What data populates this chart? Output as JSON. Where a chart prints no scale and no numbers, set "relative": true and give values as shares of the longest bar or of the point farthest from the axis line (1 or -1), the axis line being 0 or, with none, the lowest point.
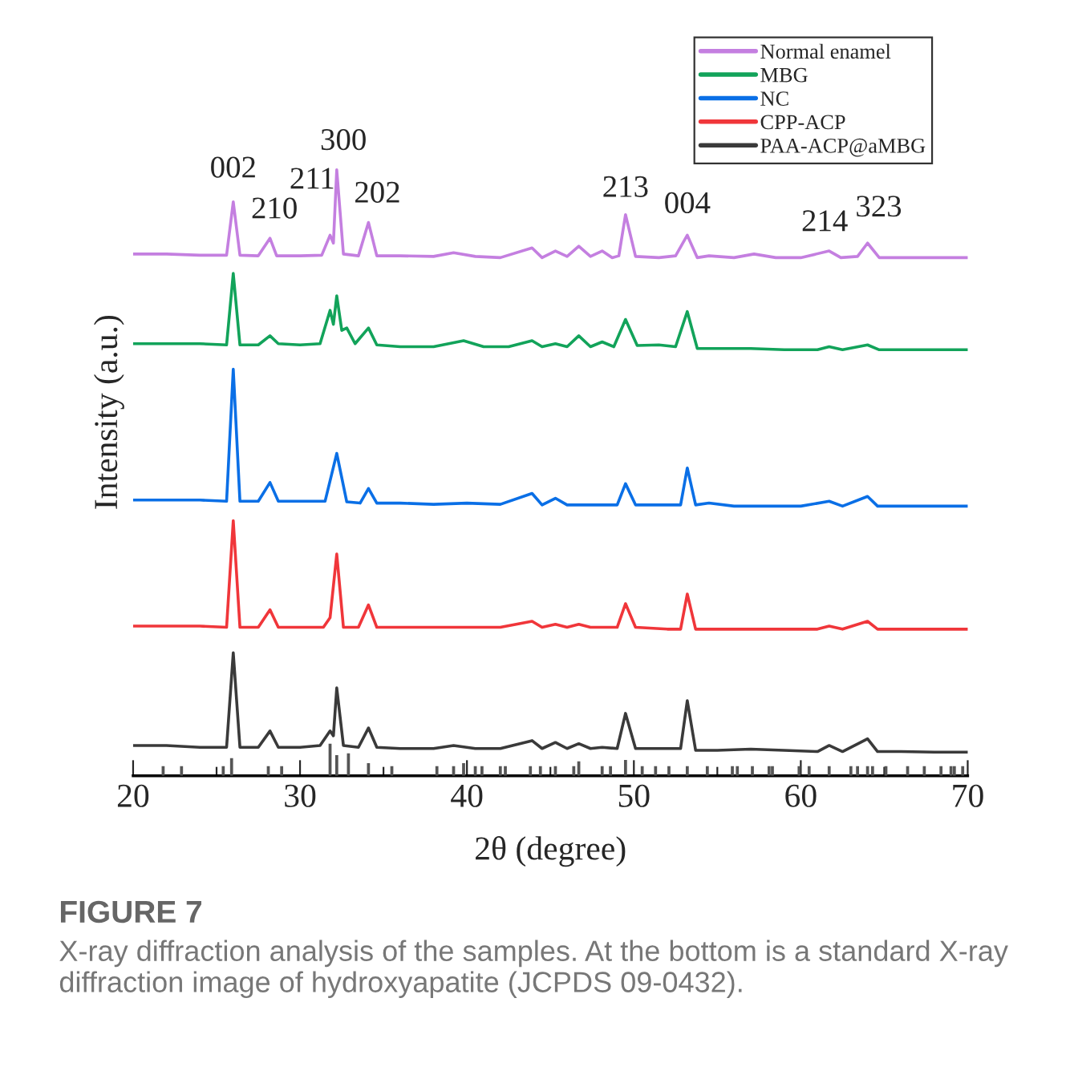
{
  "chart_data": {
    "type": "line",
    "relative": true,
    "xlabel": "2θ (degree)",
    "ylabel": "Intensity (a.u.)",
    "xlim": [
      20,
      70
    ],
    "xticks": [
      20,
      {
        "value": 25,
        "label": null
      },
      30,
      {
        "value": 35,
        "label": null
      },
      40,
      {
        "value": 45,
        "label": null
      },
      50,
      {
        "value": 55,
        "label": null
      },
      60,
      {
        "value": 65,
        "label": null
      },
      70
    ],
    "tick_labels": "x",
    "legend": "top right",
    "line_style": "solid",
    "marker": "none",
    "series": [
      {
        "name": "Normal enamel",
        "color": "#c47fe0",
        "x": [
          20,
          22,
          24,
          25.6,
          26,
          26.4,
          27.5,
          28.2,
          28.6,
          30,
          31.3,
          31.8,
          32.0,
          32.2,
          32.6,
          33.5,
          34.1,
          34.6,
          36,
          38,
          39.2,
          40.5,
          42,
          43.9,
          44.5,
          45.3,
          46,
          46.7,
          47.4,
          48.1,
          48.7,
          49.1,
          49.5,
          50.1,
          51.5,
          52.5,
          53.2,
          53.8,
          54.5,
          56,
          57.2,
          58.5,
          60,
          61.7,
          62.4,
          63.4,
          64.0,
          64.7,
          66,
          68,
          70
        ],
        "values": [
          0.861,
          0.861,
          0.859,
          0.859,
          0.947,
          0.859,
          0.858,
          0.887,
          0.858,
          0.858,
          0.859,
          0.892,
          0.879,
          1.0,
          0.861,
          0.858,
          0.913,
          0.858,
          0.858,
          0.857,
          0.863,
          0.857,
          0.855,
          0.871,
          0.855,
          0.866,
          0.857,
          0.874,
          0.857,
          0.866,
          0.855,
          0.858,
          0.926,
          0.857,
          0.855,
          0.858,
          0.892,
          0.855,
          0.858,
          0.855,
          0.861,
          0.855,
          0.855,
          0.866,
          0.855,
          0.857,
          0.879,
          0.855,
          0.855,
          0.855,
          0.855
        ]
      },
      {
        "name": "MBG",
        "color": "#12a35a",
        "x": [
          20,
          22,
          24,
          25.6,
          26.0,
          26.4,
          27.5,
          28.2,
          28.7,
          30,
          31.2,
          31.8,
          32.0,
          32.2,
          32.5,
          32.8,
          33.3,
          34.1,
          34.6,
          36,
          38,
          39.8,
          41,
          42.5,
          43.9,
          44.5,
          45.3,
          46,
          46.7,
          47.4,
          48.1,
          48.8,
          49.5,
          50.2,
          51.5,
          52.5,
          53.2,
          53.8,
          55,
          57,
          59,
          61,
          61.7,
          62.5,
          64,
          64.7,
          66,
          68,
          70
        ],
        "values": [
          0.713,
          0.713,
          0.713,
          0.711,
          0.829,
          0.711,
          0.711,
          0.726,
          0.713,
          0.711,
          0.713,
          0.768,
          0.745,
          0.792,
          0.735,
          0.739,
          0.713,
          0.739,
          0.711,
          0.708,
          0.708,
          0.718,
          0.708,
          0.708,
          0.718,
          0.708,
          0.713,
          0.708,
          0.726,
          0.708,
          0.716,
          0.708,
          0.753,
          0.71,
          0.711,
          0.708,
          0.766,
          0.705,
          0.705,
          0.705,
          0.703,
          0.703,
          0.708,
          0.703,
          0.711,
          0.703,
          0.703,
          0.703,
          0.703
        ]
      },
      {
        "name": "NC",
        "color": "#0a6fe6",
        "x": [
          20,
          22,
          24,
          25.6,
          26,
          26.4,
          27.5,
          28.2,
          28.7,
          30,
          31.5,
          32.2,
          32.8,
          33.6,
          34.1,
          34.6,
          36,
          38,
          40,
          42,
          43.9,
          44.5,
          45.3,
          46,
          48,
          49.0,
          49.5,
          50.1,
          52,
          52.8,
          53.2,
          53.7,
          54.5,
          56,
          58,
          60,
          61.7,
          62.5,
          64,
          64.6,
          66,
          68,
          70
        ],
        "values": [
          0.455,
          0.455,
          0.455,
          0.453,
          0.671,
          0.453,
          0.453,
          0.484,
          0.453,
          0.453,
          0.453,
          0.532,
          0.452,
          0.45,
          0.474,
          0.45,
          0.45,
          0.448,
          0.45,
          0.448,
          0.466,
          0.447,
          0.458,
          0.447,
          0.447,
          0.447,
          0.482,
          0.447,
          0.447,
          0.447,
          0.508,
          0.447,
          0.45,
          0.445,
          0.445,
          0.445,
          0.453,
          0.445,
          0.461,
          0.445,
          0.445,
          0.445,
          0.445
        ]
      },
      {
        "name": "CPP-ACP",
        "color": "#f0363a",
        "x": [
          20,
          22,
          24,
          25.6,
          26,
          26.4,
          27.5,
          28.2,
          28.7,
          30,
          31.4,
          31.8,
          32.2,
          32.6,
          33.5,
          34.1,
          34.6,
          36,
          38,
          40,
          42,
          43.9,
          44.5,
          45.3,
          46,
          46.7,
          47.4,
          49.0,
          49.5,
          50.1,
          52,
          52.8,
          53.2,
          53.7,
          55,
          57,
          59,
          61,
          61.7,
          62.5,
          64,
          64.6,
          66,
          68,
          70
        ],
        "values": [
          0.247,
          0.247,
          0.247,
          0.245,
          0.421,
          0.245,
          0.245,
          0.274,
          0.245,
          0.245,
          0.245,
          0.261,
          0.366,
          0.245,
          0.245,
          0.282,
          0.245,
          0.245,
          0.245,
          0.245,
          0.245,
          0.255,
          0.245,
          0.25,
          0.245,
          0.25,
          0.245,
          0.245,
          0.284,
          0.245,
          0.242,
          0.242,
          0.3,
          0.242,
          0.242,
          0.242,
          0.242,
          0.242,
          0.247,
          0.242,
          0.255,
          0.242,
          0.242,
          0.242,
          0.242
        ]
      },
      {
        "name": "PAA-ACP@aMBG",
        "color": "#3a3a3a",
        "x": [
          20,
          22,
          24,
          25.6,
          26,
          26.4,
          27.5,
          28.2,
          28.7,
          30,
          31.2,
          31.8,
          32.0,
          32.2,
          32.6,
          33.5,
          34.1,
          34.6,
          36,
          38,
          39.2,
          40.5,
          42,
          43.9,
          44.5,
          45.3,
          46,
          46.7,
          47.4,
          48.1,
          49.0,
          49.5,
          50.1,
          52,
          52.8,
          53.2,
          53.7,
          55,
          57,
          59,
          61,
          61.7,
          62.5,
          64,
          64.6,
          66,
          68,
          70
        ],
        "values": [
          0.05,
          0.05,
          0.047,
          0.047,
          0.203,
          0.047,
          0.047,
          0.074,
          0.047,
          0.047,
          0.05,
          0.074,
          0.066,
          0.145,
          0.05,
          0.047,
          0.079,
          0.047,
          0.045,
          0.045,
          0.05,
          0.045,
          0.045,
          0.058,
          0.045,
          0.055,
          0.045,
          0.053,
          0.045,
          0.047,
          0.045,
          0.103,
          0.045,
          0.045,
          0.045,
          0.124,
          0.042,
          0.042,
          0.044,
          0.042,
          0.04,
          0.05,
          0.04,
          0.061,
          0.04,
          0.04,
          0.039,
          0.039
        ]
      },
      {
        "type": "bar",
        "color": "#555555",
        "x": [
          21.8,
          22.9,
          25.4,
          25.9,
          28.1,
          28.9,
          31.8,
          32.2,
          32.9,
          34.1,
          35.5,
          38.2,
          39.2,
          39.8,
          40.5,
          40.9,
          42.0,
          42.3,
          43.8,
          44.4,
          45.3,
          46.4,
          46.7,
          48.1,
          48.6,
          49.5,
          50.5,
          51.3,
          52.1,
          53.2,
          54.4,
          55.9,
          56.2,
          57.1,
          58.1,
          58.3,
          59.9,
          60.5,
          61.7,
          63.0,
          63.4,
          64.0,
          64.3,
          65.1,
          66.4,
          67.4,
          68.4,
          69.0,
          69.2,
          69.7
        ],
        "values": [
          0.016,
          0.016,
          0.016,
          0.029,
          0.016,
          0.016,
          0.053,
          0.034,
          0.037,
          0.021,
          0.016,
          0.016,
          0.016,
          0.021,
          0.016,
          0.016,
          0.016,
          0.016,
          0.016,
          0.016,
          0.016,
          0.016,
          0.024,
          0.016,
          0.016,
          0.026,
          0.016,
          0.016,
          0.016,
          0.016,
          0.016,
          0.016,
          0.016,
          0.016,
          0.016,
          0.016,
          0.016,
          0.016,
          0.016,
          0.016,
          0.016,
          0.016,
          0.016,
          0.016,
          0.016,
          0.016,
          0.016,
          0.016,
          0.016,
          0.016
        ]
      }
    ],
    "annotations": [
      {
        "text": "002",
        "x": 26,
        "y": 0.947
      },
      {
        "text": "210",
        "x": 28.2,
        "y": 0.887
      },
      {
        "text": "211",
        "x": 31.8,
        "y": 0.892
      },
      {
        "text": "300",
        "x": 32.2,
        "y": 1.0
      },
      {
        "text": "202",
        "x": 34.1,
        "y": 0.913
      },
      {
        "text": "213",
        "x": 49.5,
        "y": 0.926
      },
      {
        "text": "004",
        "x": 53.2,
        "y": 0.892
      },
      {
        "text": "214",
        "x": 61.7,
        "y": 0.866
      },
      {
        "text": "323",
        "x": 64,
        "y": 0.879
      },
      "FIGURE 7",
      "X-ray diffraction analysis of the samples. At the bottom is a standard X-ray diffraction image of hydroxyapatite (JCPDS 09-0432)."
    ]
  }
}
